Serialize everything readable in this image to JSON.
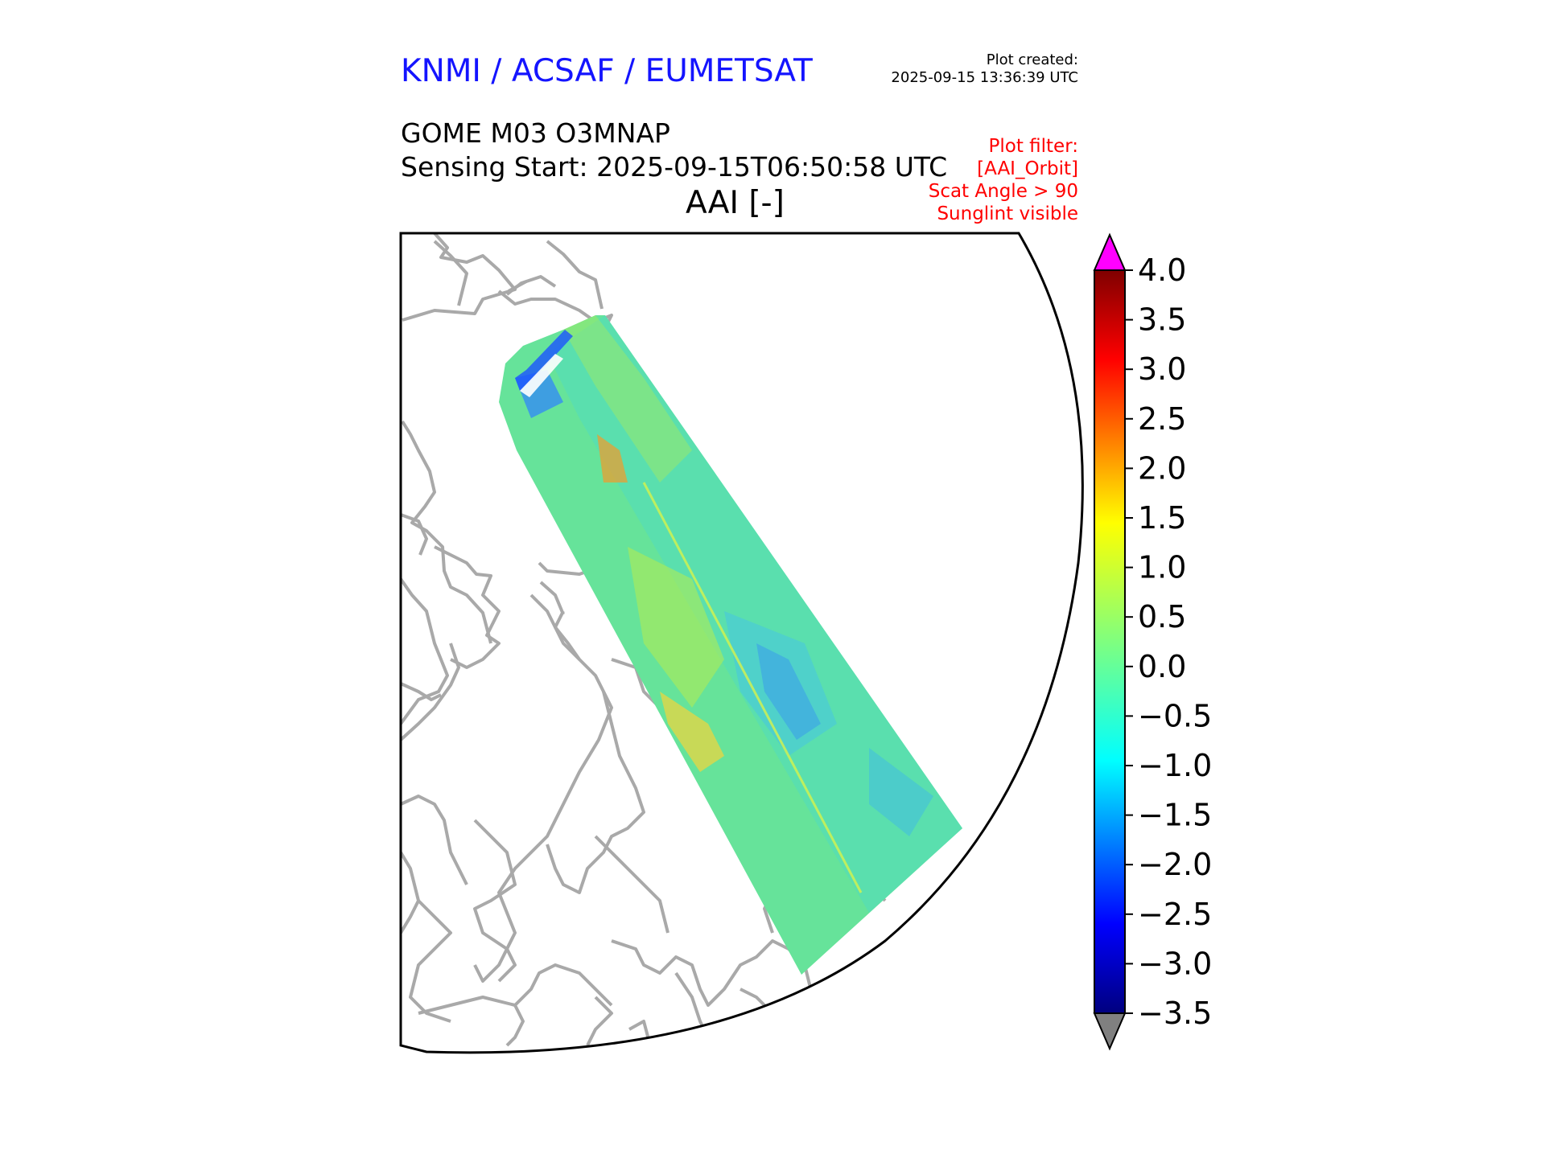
{
  "header": {
    "organisation": "KNMI / ACSAF / EUMETSAT",
    "plot_created_label": "Plot created:",
    "plot_created_time": "2025-09-15 13:36:39 UTC",
    "product": "GOME M03 O3MNAP",
    "sensing_start": "Sensing Start: 2025-09-15T06:50:58 UTC",
    "quantity": "AAI [-]"
  },
  "filter": {
    "title": "Plot filter:",
    "lines": [
      "[AAI_Orbit]",
      "Scat Angle > 90",
      "Sunglint visible"
    ]
  },
  "colorbar": {
    "min": -3.5,
    "max": 4.0,
    "ticks": [
      "4.0",
      "3.5",
      "3.0",
      "2.5",
      "2.0",
      "1.5",
      "1.0",
      "0.5",
      "0.0",
      "−0.5",
      "−1.0",
      "−1.5",
      "−2.0",
      "−2.5",
      "−3.0",
      "−3.5"
    ],
    "over_color": "#ff00ff",
    "under_color": "#808080",
    "colormap": "jet"
  },
  "colors": {
    "coastline": "#a9a9a9",
    "swath_base": "#59e39a",
    "title_blue": "#1414ff",
    "filter_red": "#ff0000"
  }
}
